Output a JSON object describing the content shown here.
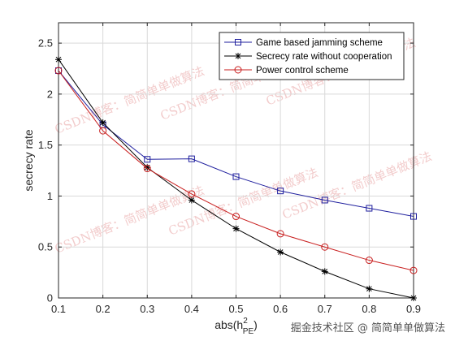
{
  "chart_data": {
    "type": "line",
    "xlabel": "abs(h",
    "xlabel_sup": "2",
    "xlabel_sub": "PE",
    "xlabel_close": ")",
    "ylabel": "secrecy rate",
    "xlim": [
      0.1,
      0.9
    ],
    "ylim": [
      0,
      2.7
    ],
    "x": [
      0.1,
      0.2,
      0.3,
      0.4,
      0.5,
      0.6,
      0.7,
      0.8,
      0.9
    ],
    "xticks": [
      "0.1",
      "0.2",
      "0.3",
      "0.4",
      "0.5",
      "0.6",
      "0.7",
      "0.8",
      "0.9"
    ],
    "yticks": [
      "0",
      "0.5",
      "1",
      "1.5",
      "2",
      "2.5"
    ],
    "ytick_values": [
      0,
      0.5,
      1,
      1.5,
      2,
      2.5
    ],
    "grid": true,
    "legend_position": "top-right",
    "series": [
      {
        "name": "Game based jamming scheme",
        "color": "#1f1f9e",
        "marker": "square",
        "values": [
          2.23,
          1.7,
          1.36,
          1.365,
          1.19,
          1.05,
          0.96,
          0.88,
          0.8
        ]
      },
      {
        "name": "Secrecy rate without cooperation",
        "color": "#000000",
        "marker": "star",
        "values": [
          2.34,
          1.72,
          1.28,
          0.96,
          0.68,
          0.45,
          0.26,
          0.09,
          0.0
        ]
      },
      {
        "name": "Power control scheme",
        "color": "#c81e1e",
        "marker": "circle",
        "values": [
          2.23,
          1.64,
          1.27,
          1.02,
          0.8,
          0.63,
          0.5,
          0.37,
          0.27
        ]
      }
    ]
  },
  "watermark": "CSDN博客：简简单单做算法",
  "footer": "掘金技术社区 @ 简简单单做算法"
}
